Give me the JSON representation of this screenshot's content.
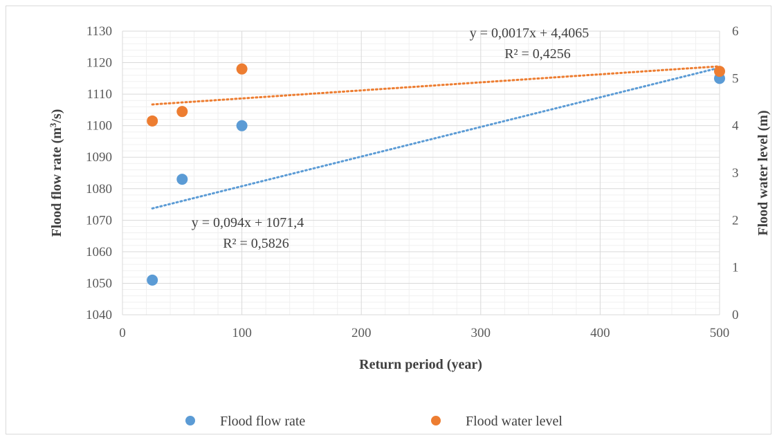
{
  "chart_data": {
    "type": "scatter",
    "xlabel": "Return period (year)",
    "ylabel_left": "Flood flow rate (m³/s)",
    "ylabel_left_parts": {
      "pre": "Flood flow rate (m",
      "sup": "3",
      "post": "/s)"
    },
    "ylabel_right": "Flood water level (m)",
    "xlim": [
      0,
      500
    ],
    "ylim_left": [
      1040,
      1130
    ],
    "ylim_right": [
      0,
      6
    ],
    "x_ticks": [
      "0",
      "100",
      "200",
      "300",
      "400",
      "500"
    ],
    "y_left_ticks": [
      "1040",
      "1050",
      "1060",
      "1070",
      "1080",
      "1090",
      "1100",
      "1110",
      "1120",
      "1130"
    ],
    "y_right_ticks": [
      "0",
      "1",
      "2",
      "3",
      "4",
      "5",
      "6"
    ],
    "grid": true,
    "legend_position": "bottom",
    "series": [
      {
        "name": "Flood flow rate",
        "axis": "left",
        "color": "#5b9bd5",
        "x": [
          25,
          50,
          100,
          500
        ],
        "y": [
          1051,
          1083,
          1100,
          1115
        ],
        "trendline": {
          "type": "linear",
          "slope": 0.094,
          "intercept": 1071.4,
          "equation": "y = 0,094x + 1071,4",
          "r2": "R² = 0,5826"
        }
      },
      {
        "name": "Flood water level",
        "axis": "right",
        "color": "#ed7d31",
        "x": [
          25,
          50,
          100,
          500
        ],
        "y": [
          4.1,
          4.3,
          5.2,
          5.15
        ],
        "trendline": {
          "type": "linear",
          "slope": 0.0017,
          "intercept": 4.4065,
          "equation": "y = 0,0017x + 4,4065",
          "r2": "R² = 0,4256"
        }
      }
    ]
  }
}
